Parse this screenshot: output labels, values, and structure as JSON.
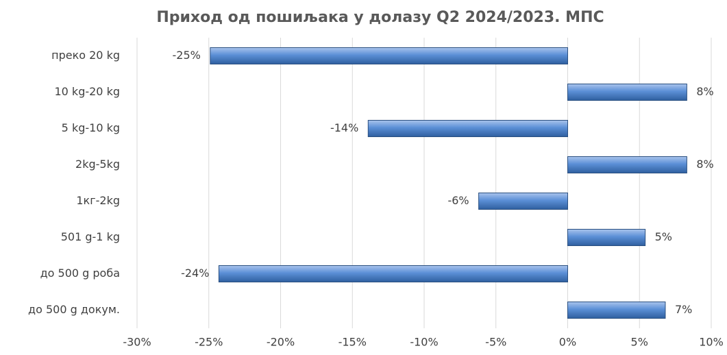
{
  "chart_data": {
    "type": "bar",
    "orientation": "horizontal",
    "title": "Приход од пошиљака у долазу Q2 2024/2023. МПС",
    "categories": [
      "преко 20 kg",
      "10 kg-20 kg",
      "5 kg-10 kg",
      "2kg-5kg",
      "1кг-2kg",
      "501 g-1 kg",
      "до 500 g роба",
      "до 500 g докум."
    ],
    "values": [
      -24.9,
      8.3,
      -13.9,
      8.3,
      -6.2,
      5.4,
      -24.3,
      6.8
    ],
    "value_labels": [
      "-25%",
      "8%",
      "-14%",
      "8%",
      "-6%",
      "5%",
      "-24%",
      "7%"
    ],
    "color": "#4f81bd",
    "xlim": [
      -30,
      10
    ],
    "xticks": [
      {
        "value": -30,
        "label": "-30%"
      },
      {
        "value": -25,
        "label": "-25%"
      },
      {
        "value": -20,
        "label": "-20%"
      },
      {
        "value": -15,
        "label": "-15%"
      },
      {
        "value": -10,
        "label": "-10%"
      },
      {
        "value": -5,
        "label": "-5%"
      },
      {
        "value": 0,
        "label": "0%"
      },
      {
        "value": 5,
        "label": "5%"
      },
      {
        "value": 10,
        "label": "10%"
      }
    ],
    "grid": true
  }
}
